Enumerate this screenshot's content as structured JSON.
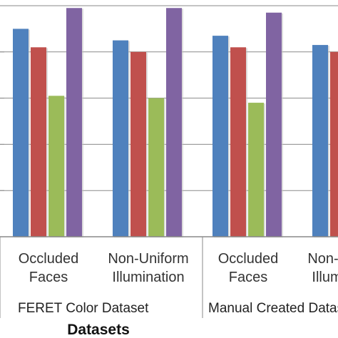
{
  "chart_data": {
    "type": "bar",
    "xlabel": "Datasets",
    "ylabel": "",
    "ylim": [
      0,
      100
    ],
    "grid": "horizontal",
    "categories": [
      "Occluded Faces",
      "Non-Uniform Illumination",
      "Occluded Faces",
      "Non-Uniform Illumination"
    ],
    "category_lines": [
      [
        "Occluded",
        "Faces"
      ],
      [
        "Non-Uniform",
        "Illumination"
      ],
      [
        "Occluded",
        "Faces"
      ],
      [
        "Non-Uniform",
        "Illumination"
      ]
    ],
    "groups": [
      {
        "label": "FERET  Color Dataset",
        "categories": [
          0,
          1
        ]
      },
      {
        "label": "Manual Created Dataset",
        "categories": [
          2,
          3
        ]
      }
    ],
    "series": [
      {
        "color": "#4F81BD",
        "values": [
          90,
          85,
          87,
          83
        ]
      },
      {
        "color": "#C0504D",
        "values": [
          82,
          80,
          82,
          80
        ]
      },
      {
        "color": "#9BBB59",
        "values": [
          61,
          60,
          58,
          null
        ]
      },
      {
        "color": "#8064A2",
        "values": [
          99,
          99,
          97,
          null
        ]
      }
    ]
  }
}
